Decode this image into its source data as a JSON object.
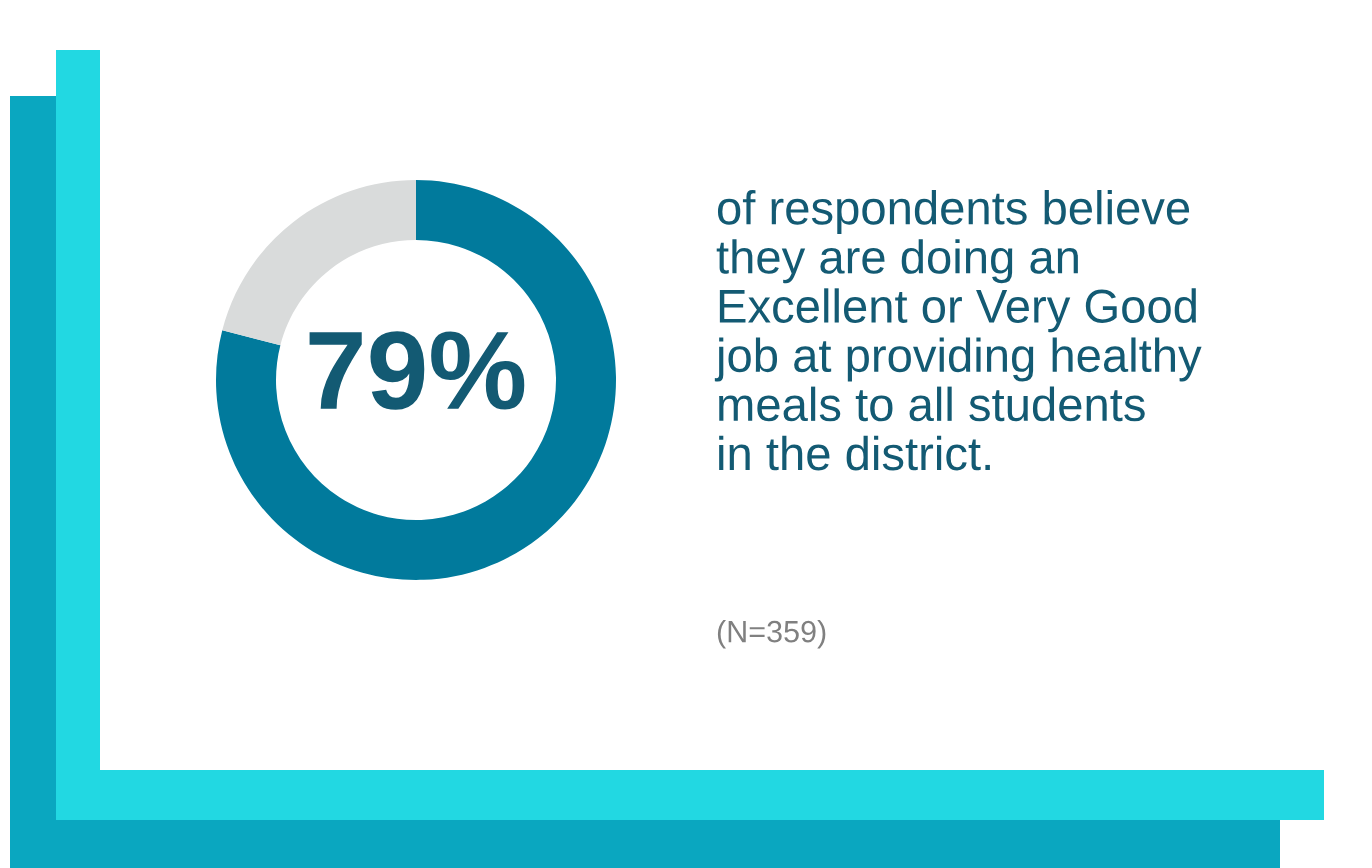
{
  "chart_data": {
    "type": "donut",
    "categories": [
      null,
      null
    ],
    "values": [
      79,
      21
    ],
    "colors": [
      "#017a9c",
      "#d9dbdb"
    ],
    "value_labels": [
      "79%",
      null
    ],
    "annotations": [
      "of respondents believe\nthey are doing an\nExcellent or Very Good\njob at providing healthy\nmeals to all students\nin the district.",
      "(N=359)"
    ]
  }
}
